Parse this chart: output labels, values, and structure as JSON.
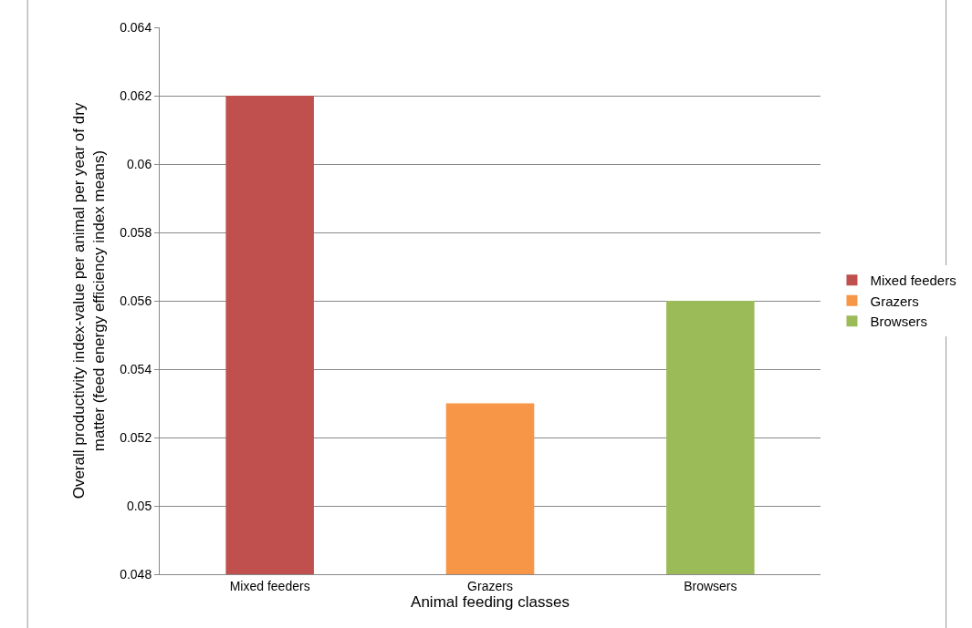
{
  "chart_data": {
    "type": "bar",
    "xlabel": "Animal feeding classes",
    "ylabel": "Overall productivity index-value per animal per year of dry matter (feed energy efficiency index means)",
    "categories": [
      "Mixed feeders",
      "Grazers",
      "Browsers"
    ],
    "series": [
      {
        "name": "Mixed feeders",
        "color": "#c0504d",
        "values": [
          0.062,
          null,
          null
        ]
      },
      {
        "name": "Grazers",
        "color": "#f79646",
        "values": [
          null,
          0.053,
          null
        ]
      },
      {
        "name": "Browsers",
        "color": "#9bbb59",
        "values": [
          null,
          null,
          0.056
        ]
      }
    ],
    "ylim": [
      0.048,
      0.064
    ],
    "yticks": [
      0.048,
      0.05,
      0.052,
      0.054,
      0.056,
      0.058,
      0.06,
      0.062,
      0.064
    ],
    "grid": "y",
    "legend": "right"
  }
}
